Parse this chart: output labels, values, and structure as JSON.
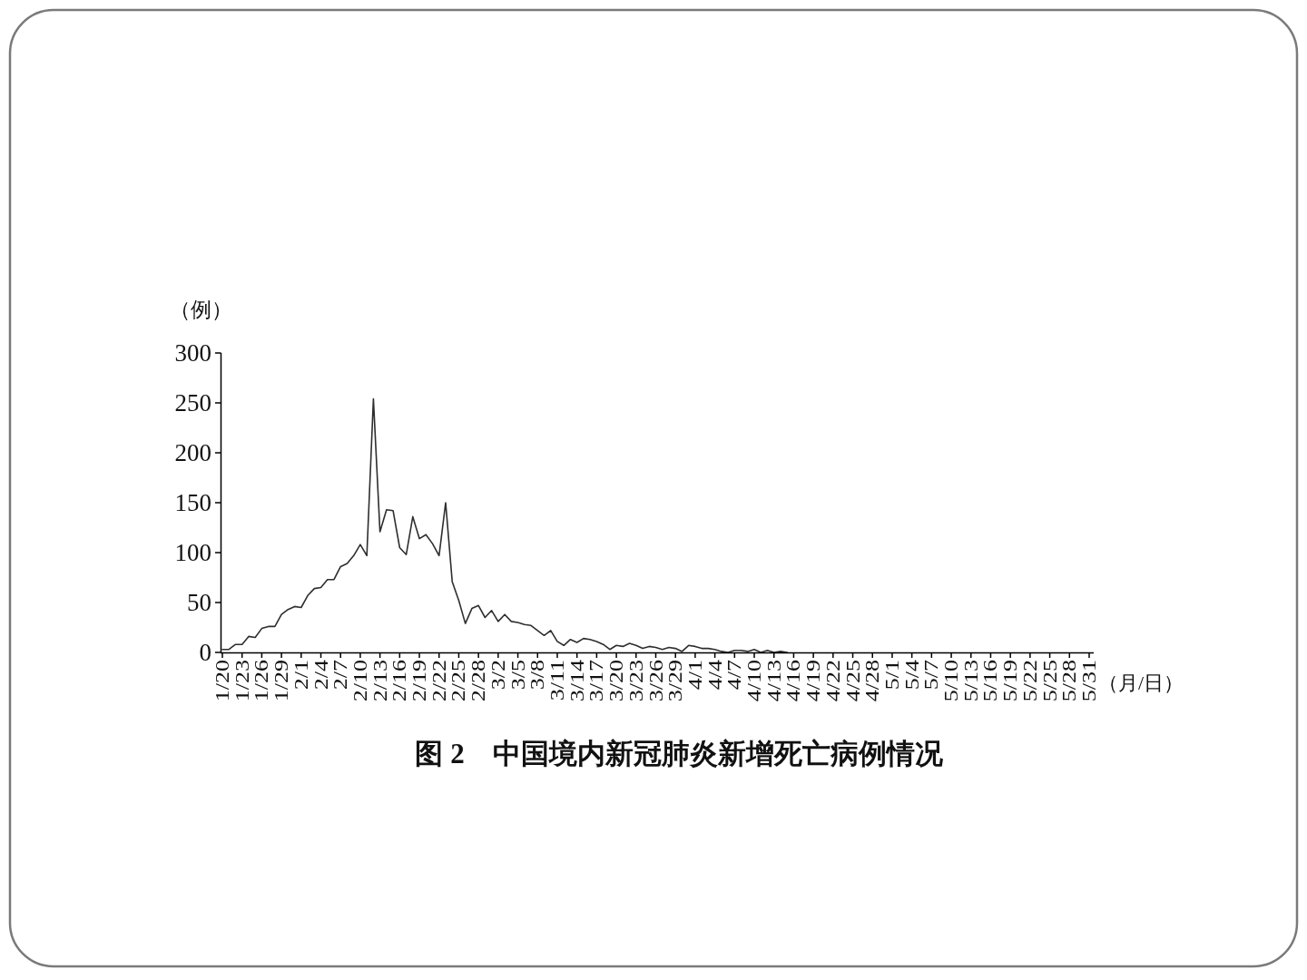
{
  "chart_data": {
    "type": "line",
    "title": "图 2　中国境内新冠肺炎新增死亡病例情况",
    "xlabel": "（月/日）",
    "ylabel": "（例）",
    "categories": [
      "1/20",
      null,
      null,
      "1/23",
      null,
      null,
      "1/26",
      null,
      null,
      "1/29",
      null,
      null,
      "2/1",
      null,
      null,
      "2/4",
      null,
      null,
      "2/7",
      null,
      null,
      "2/10",
      null,
      null,
      "2/13",
      null,
      null,
      "2/16",
      null,
      null,
      "2/19",
      null,
      null,
      "2/22",
      null,
      null,
      "2/25",
      null,
      null,
      "2/28",
      null,
      null,
      "3/2",
      null,
      null,
      "3/5",
      null,
      null,
      "3/8",
      null,
      null,
      "3/11",
      null,
      null,
      "3/14",
      null,
      null,
      "3/17",
      null,
      null,
      "3/20",
      null,
      null,
      "3/23",
      null,
      null,
      "3/26",
      null,
      null,
      "3/29",
      null,
      null,
      "4/1",
      null,
      null,
      "4/4",
      null,
      null,
      "4/7",
      null,
      null,
      "4/10",
      null,
      null,
      "4/13",
      null,
      null,
      "4/16",
      null,
      null,
      "4/19",
      null,
      null,
      "4/22",
      null,
      null,
      "4/25",
      null,
      null,
      "4/28",
      null,
      null,
      "5/1",
      null,
      null,
      "5/4",
      null,
      null,
      "5/7",
      null,
      null,
      "5/10",
      null,
      null,
      "5/13",
      null,
      null,
      "5/16",
      null,
      null,
      "5/19",
      null,
      null,
      "5/22",
      null,
      null,
      "5/25",
      null,
      null,
      "5/28",
      null,
      null,
      "5/31"
    ],
    "series": [
      {
        "color": "#2e2e2e",
        "values": [
          3,
          3,
          8,
          8,
          16,
          15,
          24,
          26,
          26,
          38,
          43,
          46,
          45,
          57,
          64,
          65,
          73,
          73,
          86,
          89,
          97,
          108,
          97,
          254,
          121,
          143,
          142,
          105,
          98,
          136,
          114,
          118,
          109,
          97,
          150,
          71,
          52,
          29,
          44,
          47,
          35,
          42,
          31,
          38,
          31,
          30,
          28,
          27,
          22,
          17,
          22,
          11,
          7,
          13,
          10,
          14,
          13,
          11,
          8,
          3,
          7,
          6,
          9,
          7,
          4,
          6,
          5,
          3,
          5,
          4,
          1,
          7,
          6,
          4,
          4,
          3,
          1,
          0,
          2,
          2,
          1,
          3,
          0,
          2,
          0,
          1,
          0,
          null,
          null,
          null,
          null,
          null,
          null,
          null,
          null,
          null,
          null,
          null,
          null,
          null,
          null,
          null,
          null,
          null,
          null,
          null,
          null,
          null,
          null,
          null,
          null,
          null,
          null,
          null,
          null,
          null,
          null,
          null,
          null,
          null,
          null,
          null,
          null,
          null,
          null,
          null,
          null,
          null,
          null,
          null,
          null,
          null,
          null
        ]
      }
    ],
    "ylim": [
      0,
      300
    ],
    "yticks": [
      0,
      50,
      100,
      150,
      200,
      250,
      300
    ],
    "line_style": "solid"
  }
}
